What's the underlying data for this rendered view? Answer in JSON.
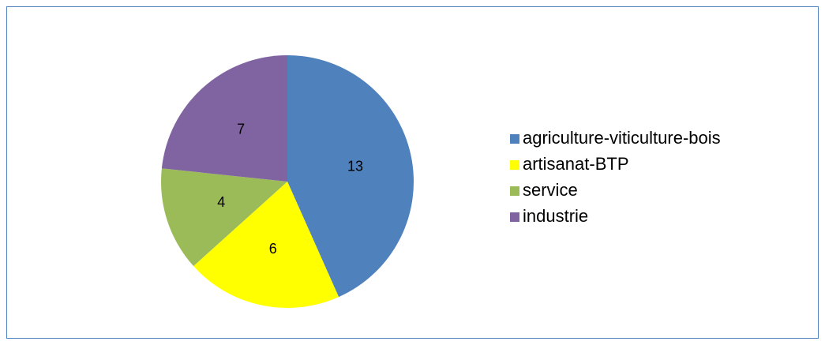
{
  "chart_data": {
    "type": "pie",
    "categories": [
      "agriculture-viticulture-bois",
      "artisanat-BTP",
      "service",
      "industrie"
    ],
    "values": [
      13,
      6,
      4,
      7
    ],
    "colors": [
      "#4f81bd",
      "#ffff00",
      "#9bbb59",
      "#8064a2"
    ],
    "legend": "right"
  }
}
